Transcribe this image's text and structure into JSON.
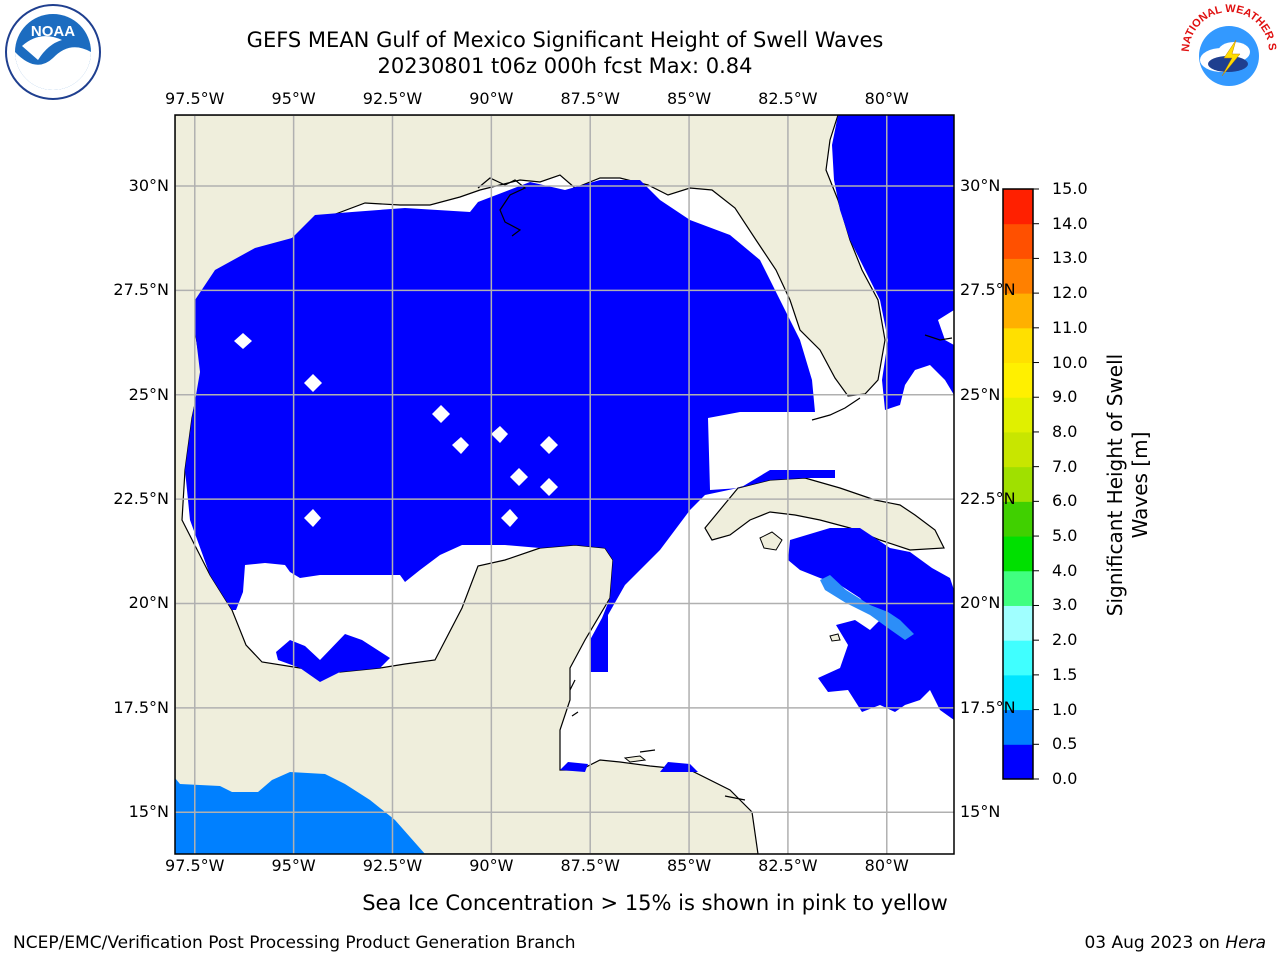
{
  "title_line1": "GEFS MEAN Gulf of Mexico Significant Height of Swell Waves",
  "title_line2": "20230801 t06z 000h fcst   Max: 0.84",
  "map": {
    "lon_labels": [
      "97.5°W",
      "95°W",
      "92.5°W",
      "90°W",
      "87.5°W",
      "85°W",
      "82.5°W",
      "80°W"
    ],
    "lat_labels": [
      "30°N",
      "27.5°N",
      "25°N",
      "22.5°N",
      "20°N",
      "17.5°N",
      "15°N"
    ],
    "lon_values": [
      -97.5,
      -95,
      -92.5,
      -90,
      -87.5,
      -85,
      -82.5,
      -80
    ],
    "lat_values": [
      30,
      27.5,
      25,
      22.5,
      20,
      17.5,
      15
    ],
    "lon_range": [
      -98,
      -78.3
    ],
    "lat_range": [
      14.0,
      31.7
    ],
    "colors": {
      "land": "#efeedc",
      "swell_0": "#0000ff",
      "swell_05": "#0080ff",
      "grid": "#b0b0b0"
    }
  },
  "colorbar": {
    "label": "Significant Height of Swell Waves [m]",
    "ticks": [
      "15.0",
      "14.0",
      "13.0",
      "12.0",
      "11.0",
      "10.0",
      "9.0",
      "8.0",
      "7.0",
      "6.0",
      "5.0",
      "4.0",
      "3.0",
      "2.0",
      "1.5",
      "1.0",
      "0.5",
      "0.0"
    ],
    "levels": [
      0,
      0.5,
      1.0,
      1.5,
      2.0,
      3.0,
      4.0,
      5.0,
      6.0,
      7.0,
      8.0,
      9.0,
      10.0,
      11.0,
      12.0,
      13.0,
      14.0,
      15.0
    ],
    "colors": [
      "#0000ff",
      "#0080ff",
      "#00e5ff",
      "#40ffff",
      "#a0ffff",
      "#40ff80",
      "#00e000",
      "#40d000",
      "#a0e000",
      "#c8e600",
      "#e0f000",
      "#fff000",
      "#ffe000",
      "#ffb000",
      "#ff8000",
      "#ff5000",
      "#ff2000"
    ]
  },
  "note": "Sea Ice Concentration > 15% is shown in pink to yellow",
  "footer_left": "NCEP/EMC/Verification Post Processing Product Generation Branch",
  "footer_date": "03 Aug 2023 on ",
  "footer_host": "Hera",
  "logos": {
    "left": "NOAA",
    "right": "NATIONAL WEATHER SERVICE"
  }
}
